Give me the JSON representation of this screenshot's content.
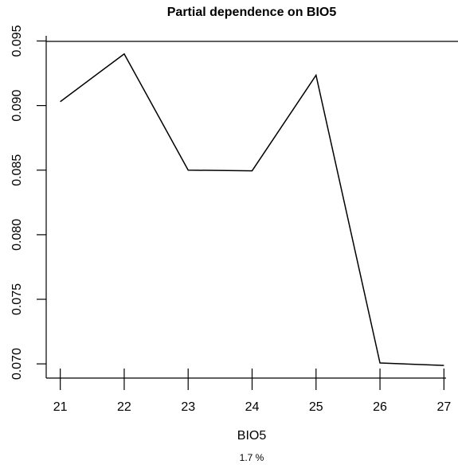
{
  "chart_data": {
    "type": "line",
    "title": "Partial dependence on BIO5",
    "xlabel": "BIO5",
    "subtitle": "1.7 %",
    "x": [
      21,
      22,
      23,
      24,
      25,
      26,
      27
    ],
    "series": [
      {
        "name": null,
        "color": "#000000",
        "values": [
          0.0903,
          0.094,
          0.085,
          0.08495,
          0.09235,
          0.07007,
          0.06988
        ]
      }
    ],
    "xlim": [
      20.78,
      27.22
    ],
    "ylim": [
      0.0689,
      0.0954
    ],
    "xticks": [
      21,
      22,
      23,
      24,
      25,
      26,
      27
    ],
    "yticks": [
      {
        "value": 0.07,
        "label": "0.070"
      },
      0.075,
      {
        "value": 0.08,
        "label": "0.080"
      },
      0.085,
      {
        "value": 0.09,
        "label": "0.090"
      },
      0.095
    ]
  }
}
